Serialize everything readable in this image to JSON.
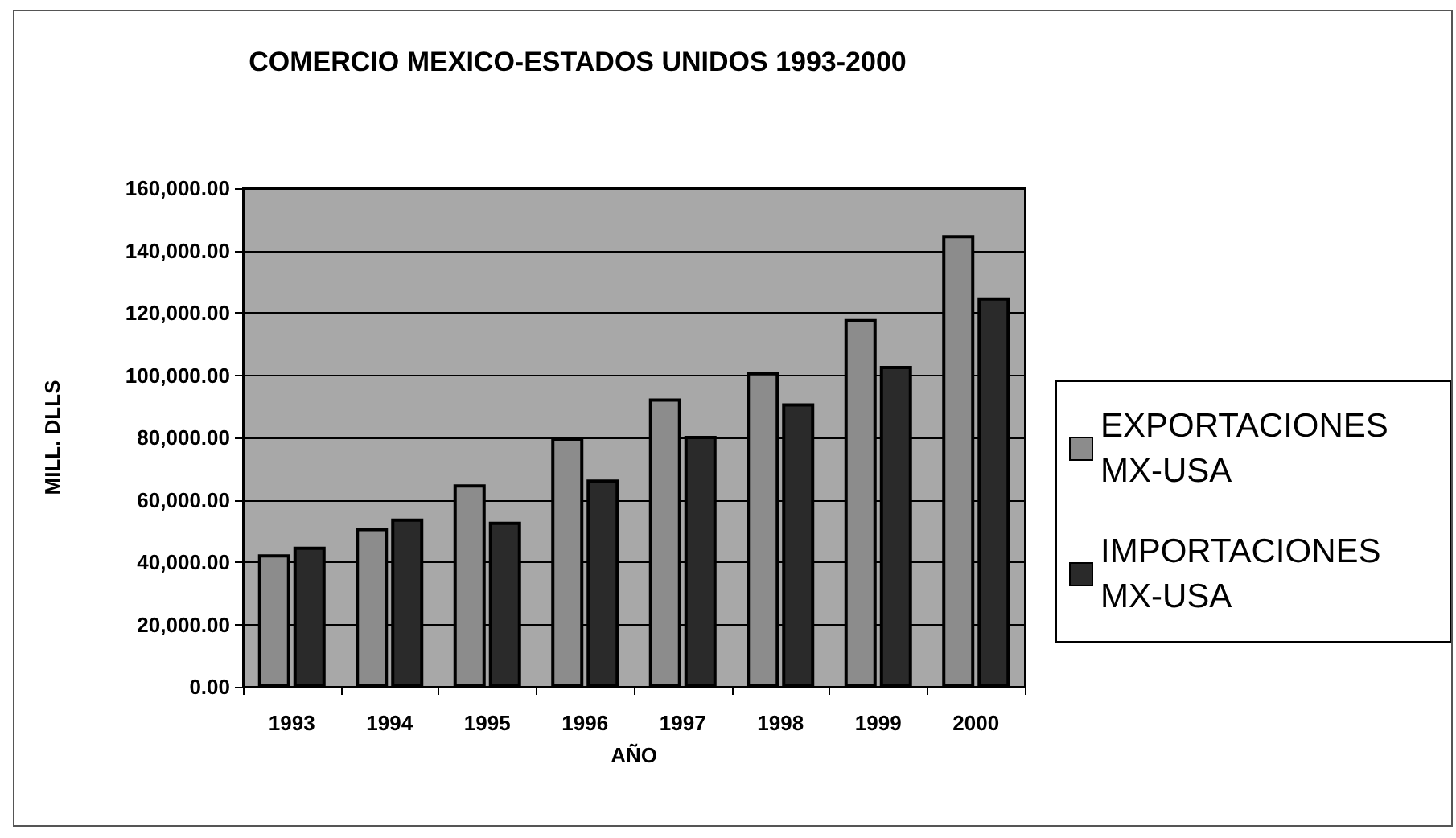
{
  "chart_data": {
    "type": "bar",
    "title": "COMERCIO MEXICO-ESTADOS UNIDOS 1993-2000",
    "xlabel": "AÑO",
    "ylabel": "MILL. DLLS",
    "categories": [
      "1993",
      "1994",
      "1995",
      "1996",
      "1997",
      "1998",
      "1999",
      "2000"
    ],
    "series": [
      {
        "name": "EXPORTACIONES MX-USA",
        "color": "#8c8c8c",
        "values": [
          42500,
          51000,
          65000,
          80000,
          92500,
          101000,
          118000,
          145000
        ]
      },
      {
        "name": "IMPORTACIONES MX-USA",
        "color": "#2a2a2a",
        "values": [
          45000,
          54000,
          53000,
          66500,
          80500,
          91000,
          103000,
          125000
        ]
      }
    ],
    "ylim": [
      0,
      160000
    ],
    "yticks": [
      {
        "value": 0,
        "label": "0.00"
      },
      {
        "value": 20000,
        "label": "20,000.00"
      },
      {
        "value": 40000,
        "label": "40,000.00"
      },
      {
        "value": 60000,
        "label": "60,000.00"
      },
      {
        "value": 80000,
        "label": "80,000.00"
      },
      {
        "value": 100000,
        "label": "100,000.00"
      },
      {
        "value": 120000,
        "label": "120,000.00"
      },
      {
        "value": 140000,
        "label": "140,000.00"
      },
      {
        "value": 160000,
        "label": "160,000.00"
      }
    ],
    "grid": "y",
    "legend": "right"
  }
}
